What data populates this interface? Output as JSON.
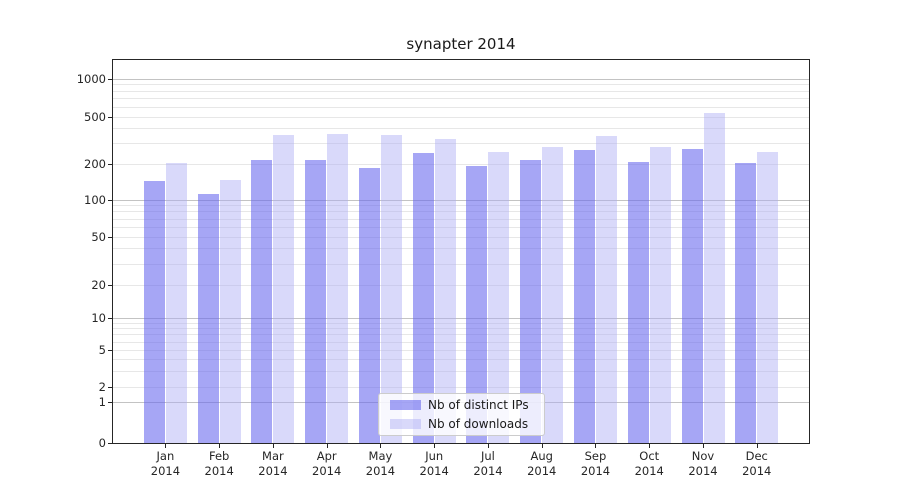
{
  "title": "synapter 2014",
  "chart_data": {
    "type": "bar",
    "title": "synapter 2014",
    "categories": [
      "Jan",
      "Feb",
      "Mar",
      "Apr",
      "May",
      "Jun",
      "Jul",
      "Aug",
      "Sep",
      "Oct",
      "Nov",
      "Dec"
    ],
    "x_tick_second_line": "2014",
    "series": [
      {
        "name": "Nb of distinct IPs",
        "color": "rgba(102,102,238,0.58)",
        "values": [
          143,
          112,
          216,
          216,
          186,
          246,
          193,
          216,
          262,
          209,
          270,
          203
        ]
      },
      {
        "name": "Nb of downloads",
        "color": "rgba(170,170,245,0.45)",
        "values": [
          203,
          145,
          351,
          358,
          351,
          324,
          252,
          277,
          344,
          277,
          534,
          254
        ]
      }
    ],
    "yticks": [
      0,
      1,
      2,
      5,
      10,
      20,
      50,
      100,
      200,
      500,
      1000
    ],
    "yscale": "symlog",
    "ylim": [
      0,
      1400
    ],
    "xlabel": "",
    "ylabel": "",
    "grid": true,
    "legend_position": "inside lower center"
  },
  "colors": {
    "distinct_ips_bar_on_white": "#a6a6f7",
    "downloads_bar_on_white": "#d9d9f9",
    "grid_major": "#c3c3c3",
    "grid_minor": "#e7e7e7",
    "axis": "#262626",
    "legend_border": "#cccccc",
    "background": "#ffffff"
  }
}
